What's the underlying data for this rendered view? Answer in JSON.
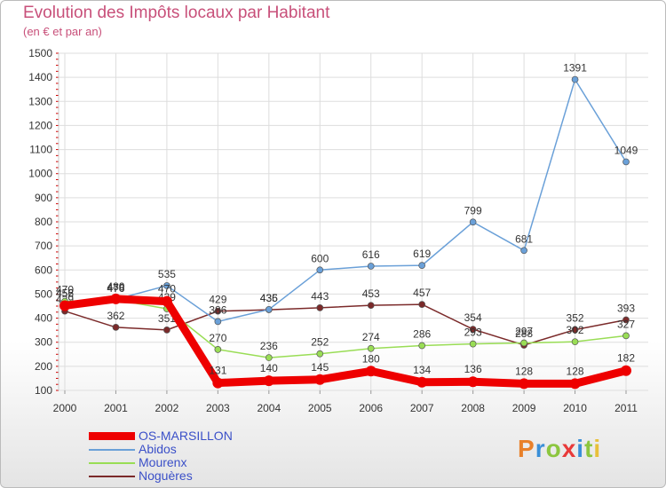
{
  "header": {
    "title": "Evolution des Impôts locaux par Habitant",
    "subtitle": "(en € et par an)"
  },
  "logo": {
    "letters": [
      "P",
      "r",
      "o",
      "x",
      "i",
      "t",
      "i"
    ]
  },
  "colors": {
    "title": "#c8507a",
    "legend_text": "#3b50c8",
    "grid": "#dddddd",
    "axis_tick": "#cc0000"
  },
  "chart_data": {
    "type": "line",
    "title": "Evolution des Impôts locaux par Habitant",
    "subtitle": "(en € et par an)",
    "xlabel": "",
    "ylabel": "",
    "categories": [
      "2000",
      "2001",
      "2002",
      "2003",
      "2004",
      "2005",
      "2006",
      "2007",
      "2008",
      "2009",
      "2010",
      "2011"
    ],
    "ylim": [
      100,
      1500
    ],
    "yticks": [
      100,
      200,
      300,
      400,
      500,
      600,
      700,
      800,
      900,
      1000,
      1100,
      1200,
      1300,
      1400,
      1500
    ],
    "grid": true,
    "legend_position": "bottom-left",
    "series": [
      {
        "name": "Noguères",
        "color": "#7b2a2a",
        "values": [
          429,
          362,
          351,
          429,
          435,
          443,
          453,
          457,
          354,
          288,
          352,
          393
        ],
        "labels": [
          "429",
          "362",
          "351",
          "429",
          "435",
          "443",
          "453",
          "457",
          "354",
          "288",
          "352",
          "393"
        ]
      },
      {
        "name": "Mourenx",
        "color": "#99dd55",
        "values": [
          470,
          476,
          439,
          270,
          236,
          252,
          274,
          286,
          293,
          297,
          302,
          327
        ],
        "labels": [
          "470",
          "476",
          "439",
          "270",
          "236",
          "252",
          "274",
          "286",
          "293",
          "297",
          "302",
          "327"
        ]
      },
      {
        "name": "Abidos",
        "color": "#6aa0d8",
        "values": [
          456,
          478,
          535,
          386,
          436,
          600,
          616,
          619,
          799,
          681,
          1391,
          1049
        ],
        "labels": [
          "456",
          "478",
          "535",
          "386",
          "436",
          "600",
          "616",
          "619",
          "799",
          "681",
          "1391",
          "1049"
        ]
      },
      {
        "name": "OS-MARSILLON",
        "color": "#ee0000",
        "values": [
          452,
          480,
          470,
          131,
          140,
          145,
          180,
          134,
          136,
          128,
          128,
          182
        ],
        "labels": [
          "452",
          "480",
          "470",
          "131",
          "140",
          "145",
          "180",
          "134",
          "136",
          "128",
          "128",
          "182"
        ]
      }
    ],
    "legend_order": [
      "OS-MARSILLON",
      "Abidos",
      "Mourenx",
      "Noguères"
    ]
  }
}
